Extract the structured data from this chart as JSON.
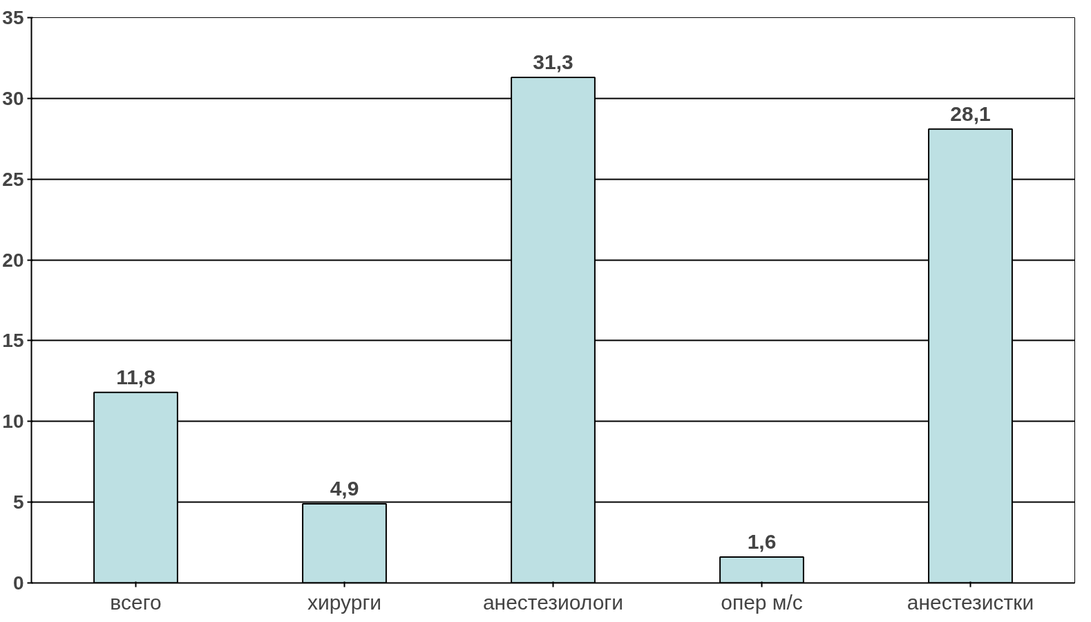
{
  "chart_data": {
    "type": "bar",
    "categories": [
      "всего",
      "хирурги",
      "анестезиологи",
      "опер м/с",
      "анестезистки"
    ],
    "values": [
      11.8,
      4.9,
      31.3,
      1.6,
      28.1
    ],
    "value_labels": [
      "11,8",
      "4,9",
      "31,3",
      "1,6",
      "28,1"
    ],
    "color": "#bde0e3",
    "ylim": [
      0,
      35
    ],
    "yticks": [
      0,
      5,
      10,
      15,
      20,
      25,
      30,
      35
    ],
    "grid": "y"
  }
}
